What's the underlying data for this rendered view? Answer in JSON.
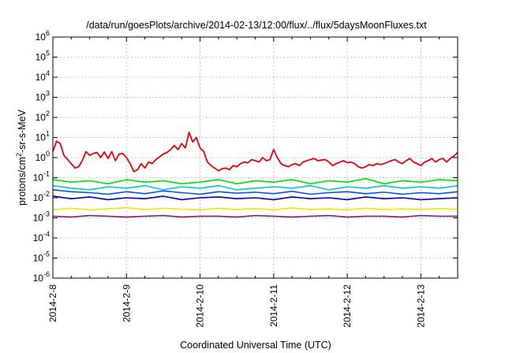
{
  "chart_data": {
    "type": "line",
    "title": "/data/run/goesPlots/archive/2014-02-13/12:00/flux/../flux/5daysMoonFluxes.txt",
    "xlabel": "Coordinated Universal Time (UTC)",
    "ylabel": "protons/cm²-sr-sec-MeV",
    "ylabel_parts": [
      "protons/cm",
      "2",
      "-sr-s-MeV"
    ],
    "y_scale": "log",
    "ylim": [
      1e-06,
      1000000.0
    ],
    "xlim": [
      "2014-02-08 00:00",
      "2014-02-13 12:00"
    ],
    "x_ticks": [
      "2014-2-8",
      "2014-2-9",
      "2014-2-10",
      "2014-2-11",
      "2014-2-12",
      "2014-2-13"
    ],
    "y_ticks": [
      {
        "base": "10",
        "exp": "-6"
      },
      {
        "base": "10",
        "exp": "-5"
      },
      {
        "base": "10",
        "exp": "-4"
      },
      {
        "base": "10",
        "exp": "-3"
      },
      {
        "base": "10",
        "exp": "-2"
      },
      {
        "base": "10",
        "exp": "-1"
      },
      {
        "base": "10",
        "exp": "0"
      },
      {
        "base": "10",
        "exp": "1"
      },
      {
        "base": "10",
        "exp": "2"
      },
      {
        "base": "10",
        "exp": "3"
      },
      {
        "base": "10",
        "exp": "4"
      },
      {
        "base": "10",
        "exp": "5"
      },
      {
        "base": "10",
        "exp": "6"
      }
    ],
    "grid": true,
    "series": [
      {
        "color": "#e8000b",
        "x": [
          "2014-02-08 00:00",
          "2014-02-08 01:12",
          "2014-02-08 02:24",
          "2014-02-08 03:36",
          "2014-02-08 04:48",
          "2014-02-08 06:00",
          "2014-02-08 07:12",
          "2014-02-08 08:24",
          "2014-02-08 09:36",
          "2014-02-08 10:48",
          "2014-02-08 12:00",
          "2014-02-08 13:12",
          "2014-02-08 14:24",
          "2014-02-08 15:36",
          "2014-02-08 16:48",
          "2014-02-08 18:00",
          "2014-02-08 19:12",
          "2014-02-08 20:24",
          "2014-02-08 21:36",
          "2014-02-08 22:48",
          "2014-02-09 00:00",
          "2014-02-09 01:12",
          "2014-02-09 02:24",
          "2014-02-09 03:36",
          "2014-02-09 04:48",
          "2014-02-09 06:00",
          "2014-02-09 07:12",
          "2014-02-09 08:24",
          "2014-02-09 09:36",
          "2014-02-09 10:48",
          "2014-02-09 12:00",
          "2014-02-09 13:12",
          "2014-02-09 14:24",
          "2014-02-09 15:36",
          "2014-02-09 16:48",
          "2014-02-09 18:00",
          "2014-02-09 19:12",
          "2014-02-09 20:24",
          "2014-02-09 21:36",
          "2014-02-09 22:48",
          "2014-02-10 00:00",
          "2014-02-10 01:12",
          "2014-02-10 02:24",
          "2014-02-10 03:36",
          "2014-02-10 04:48",
          "2014-02-10 06:00",
          "2014-02-10 07:12",
          "2014-02-10 08:24",
          "2014-02-10 09:36",
          "2014-02-10 10:48",
          "2014-02-10 12:00",
          "2014-02-10 13:12",
          "2014-02-10 14:24",
          "2014-02-10 15:36",
          "2014-02-10 16:48",
          "2014-02-10 18:00",
          "2014-02-10 19:12",
          "2014-02-10 20:24",
          "2014-02-10 21:36",
          "2014-02-10 22:48",
          "2014-02-11 00:00",
          "2014-02-11 01:12",
          "2014-02-11 02:24",
          "2014-02-11 03:36",
          "2014-02-11 04:48",
          "2014-02-11 06:00",
          "2014-02-11 07:12",
          "2014-02-11 08:24",
          "2014-02-11 09:36",
          "2014-02-11 10:48",
          "2014-02-11 12:00",
          "2014-02-11 13:12",
          "2014-02-11 14:24",
          "2014-02-11 15:36",
          "2014-02-11 16:48",
          "2014-02-11 18:00",
          "2014-02-11 19:12",
          "2014-02-11 20:24",
          "2014-02-11 21:36",
          "2014-02-11 22:48",
          "2014-02-12 00:00",
          "2014-02-12 01:12",
          "2014-02-12 02:24",
          "2014-02-12 03:36",
          "2014-02-12 04:48",
          "2014-02-12 06:00",
          "2014-02-12 07:12",
          "2014-02-12 08:24",
          "2014-02-12 09:36",
          "2014-02-12 10:48",
          "2014-02-12 12:00",
          "2014-02-12 13:12",
          "2014-02-12 14:24",
          "2014-02-12 15:36",
          "2014-02-12 16:48",
          "2014-02-12 18:00",
          "2014-02-12 19:12",
          "2014-02-12 20:24",
          "2014-02-12 21:36",
          "2014-02-12 22:48",
          "2014-02-13 00:00",
          "2014-02-13 01:12",
          "2014-02-13 02:24",
          "2014-02-13 03:36",
          "2014-02-13 04:48",
          "2014-02-13 06:00",
          "2014-02-13 07:12",
          "2014-02-13 08:24",
          "2014-02-13 09:36",
          "2014-02-13 10:48",
          "2014-02-13 12:00"
        ],
        "y": [
          2.0,
          6.5,
          5.0,
          1.3,
          0.8,
          0.5,
          0.3,
          0.35,
          0.7,
          2.0,
          1.3,
          1.6,
          1.8,
          1.0,
          1.9,
          0.9,
          2.0,
          0.7,
          1.5,
          1.6,
          1.0,
          0.5,
          0.2,
          0.25,
          0.5,
          0.3,
          0.6,
          0.5,
          0.8,
          1.1,
          1.5,
          1.8,
          2.5,
          4.0,
          2.5,
          5.0,
          3.0,
          18.0,
          6.0,
          10.0,
          3.0,
          2.0,
          0.6,
          0.4,
          0.3,
          0.22,
          0.28,
          0.3,
          0.25,
          0.4,
          0.35,
          0.5,
          0.6,
          0.55,
          0.8,
          0.7,
          0.6,
          1.0,
          0.7,
          0.8,
          2.5,
          1.0,
          0.5,
          0.4,
          0.35,
          0.45,
          0.5,
          0.4,
          0.6,
          0.7,
          0.8,
          0.9,
          0.7,
          0.75,
          0.8,
          0.6,
          0.4,
          0.5,
          0.6,
          0.7,
          0.55,
          0.6,
          0.5,
          0.35,
          0.3,
          0.35,
          0.45,
          0.4,
          0.5,
          0.45,
          0.5,
          0.6,
          0.7,
          0.8,
          0.6,
          0.5,
          0.7,
          0.9,
          0.6,
          0.5,
          0.4,
          0.6,
          0.7,
          0.9,
          0.6,
          0.8,
          0.9,
          0.6,
          0.9,
          1.2,
          1.8
        ]
      },
      {
        "color": "#00e000",
        "x": [
          "2014-02-08 00:00",
          "2014-02-08 06:00",
          "2014-02-08 12:00",
          "2014-02-08 18:00",
          "2014-02-09 00:00",
          "2014-02-09 06:00",
          "2014-02-09 12:00",
          "2014-02-09 18:00",
          "2014-02-10 00:00",
          "2014-02-10 06:00",
          "2014-02-10 12:00",
          "2014-02-10 18:00",
          "2014-02-11 00:00",
          "2014-02-11 06:00",
          "2014-02-11 12:00",
          "2014-02-11 18:00",
          "2014-02-12 00:00",
          "2014-02-12 06:00",
          "2014-02-12 12:00",
          "2014-02-12 18:00",
          "2014-02-13 00:00",
          "2014-02-13 06:00",
          "2014-02-13 12:00"
        ],
        "y": [
          0.08,
          0.06,
          0.07,
          0.05,
          0.08,
          0.06,
          0.07,
          0.05,
          0.06,
          0.08,
          0.05,
          0.07,
          0.06,
          0.08,
          0.05,
          0.07,
          0.06,
          0.09,
          0.05,
          0.07,
          0.06,
          0.08,
          0.07
        ]
      },
      {
        "color": "#00c8c8",
        "x": [
          "2014-02-08 00:00",
          "2014-02-08 06:00",
          "2014-02-08 12:00",
          "2014-02-08 18:00",
          "2014-02-09 00:00",
          "2014-02-09 06:00",
          "2014-02-09 12:00",
          "2014-02-09 18:00",
          "2014-02-10 00:00",
          "2014-02-10 06:00",
          "2014-02-10 12:00",
          "2014-02-10 18:00",
          "2014-02-11 00:00",
          "2014-02-11 06:00",
          "2014-02-11 12:00",
          "2014-02-11 18:00",
          "2014-02-12 00:00",
          "2014-02-12 06:00",
          "2014-02-12 12:00",
          "2014-02-12 18:00",
          "2014-02-13 00:00",
          "2014-02-13 06:00",
          "2014-02-13 12:00"
        ],
        "y": [
          0.04,
          0.03,
          0.025,
          0.035,
          0.03,
          0.04,
          0.025,
          0.035,
          0.03,
          0.04,
          0.025,
          0.03,
          0.035,
          0.03,
          0.04,
          0.025,
          0.035,
          0.03,
          0.04,
          0.03,
          0.035,
          0.03,
          0.04
        ]
      },
      {
        "color": "#0050ff",
        "x": [
          "2014-02-08 00:00",
          "2014-02-08 06:00",
          "2014-02-08 12:00",
          "2014-02-08 18:00",
          "2014-02-09 00:00",
          "2014-02-09 06:00",
          "2014-02-09 12:00",
          "2014-02-09 18:00",
          "2014-02-10 00:00",
          "2014-02-10 06:00",
          "2014-02-10 12:00",
          "2014-02-10 18:00",
          "2014-02-11 00:00",
          "2014-02-11 06:00",
          "2014-02-11 12:00",
          "2014-02-11 18:00",
          "2014-02-12 00:00",
          "2014-02-12 06:00",
          "2014-02-12 12:00",
          "2014-02-12 18:00",
          "2014-02-13 00:00",
          "2014-02-13 06:00",
          "2014-02-13 12:00"
        ],
        "y": [
          0.025,
          0.02,
          0.018,
          0.015,
          0.02,
          0.016,
          0.022,
          0.018,
          0.015,
          0.02,
          0.017,
          0.019,
          0.016,
          0.021,
          0.015,
          0.018,
          0.02,
          0.016,
          0.019,
          0.015,
          0.018,
          0.016,
          0.02
        ]
      },
      {
        "color": "#0000c0",
        "x": [
          "2014-02-08 00:00",
          "2014-02-08 06:00",
          "2014-02-08 12:00",
          "2014-02-08 18:00",
          "2014-02-09 00:00",
          "2014-02-09 06:00",
          "2014-02-09 12:00",
          "2014-02-09 18:00",
          "2014-02-10 00:00",
          "2014-02-10 06:00",
          "2014-02-10 12:00",
          "2014-02-10 18:00",
          "2014-02-11 00:00",
          "2014-02-11 06:00",
          "2014-02-11 12:00",
          "2014-02-11 18:00",
          "2014-02-12 00:00",
          "2014-02-12 06:00",
          "2014-02-12 12:00",
          "2014-02-12 18:00",
          "2014-02-13 00:00",
          "2014-02-13 06:00",
          "2014-02-13 12:00"
        ],
        "y": [
          0.012,
          0.009,
          0.011,
          0.008,
          0.01,
          0.009,
          0.012,
          0.008,
          0.01,
          0.011,
          0.009,
          0.01,
          0.008,
          0.011,
          0.009,
          0.01,
          0.008,
          0.011,
          0.009,
          0.01,
          0.008,
          0.009,
          0.01
        ]
      },
      {
        "color": "#f0e600",
        "x": [
          "2014-02-08 00:00",
          "2014-02-08 06:00",
          "2014-02-08 12:00",
          "2014-02-08 18:00",
          "2014-02-09 00:00",
          "2014-02-09 06:00",
          "2014-02-09 12:00",
          "2014-02-09 18:00",
          "2014-02-10 00:00",
          "2014-02-10 06:00",
          "2014-02-10 12:00",
          "2014-02-10 18:00",
          "2014-02-11 00:00",
          "2014-02-11 06:00",
          "2014-02-11 12:00",
          "2014-02-11 18:00",
          "2014-02-12 00:00",
          "2014-02-12 06:00",
          "2014-02-12 12:00",
          "2014-02-12 18:00",
          "2014-02-13 00:00",
          "2014-02-13 06:00",
          "2014-02-13 12:00"
        ],
        "y": [
          0.0025,
          0.003,
          0.0025,
          0.0028,
          0.0032,
          0.0026,
          0.003,
          0.0027,
          0.0025,
          0.003,
          0.0026,
          0.0029,
          0.0025,
          0.0031,
          0.0026,
          0.0028,
          0.0025,
          0.003,
          0.0026,
          0.0028,
          0.0026,
          0.0029,
          0.0027
        ]
      },
      {
        "color": "#7f1f6f",
        "x": [
          "2014-02-08 00:00",
          "2014-02-08 06:00",
          "2014-02-08 12:00",
          "2014-02-08 18:00",
          "2014-02-09 00:00",
          "2014-02-09 06:00",
          "2014-02-09 12:00",
          "2014-02-09 18:00",
          "2014-02-10 00:00",
          "2014-02-10 06:00",
          "2014-02-10 12:00",
          "2014-02-10 18:00",
          "2014-02-11 00:00",
          "2014-02-11 06:00",
          "2014-02-11 12:00",
          "2014-02-11 18:00",
          "2014-02-12 00:00",
          "2014-02-12 06:00",
          "2014-02-12 12:00",
          "2014-02-12 18:00",
          "2014-02-13 00:00",
          "2014-02-13 06:00",
          "2014-02-13 12:00"
        ],
        "y": [
          0.0012,
          0.0011,
          0.0013,
          0.0012,
          0.0011,
          0.0012,
          0.0013,
          0.0011,
          0.0012,
          0.0012,
          0.0011,
          0.0013,
          0.0012,
          0.0011,
          0.0012,
          0.0013,
          0.0011,
          0.0012,
          0.0012,
          0.0011,
          0.0013,
          0.0012,
          0.0012
        ]
      }
    ]
  }
}
